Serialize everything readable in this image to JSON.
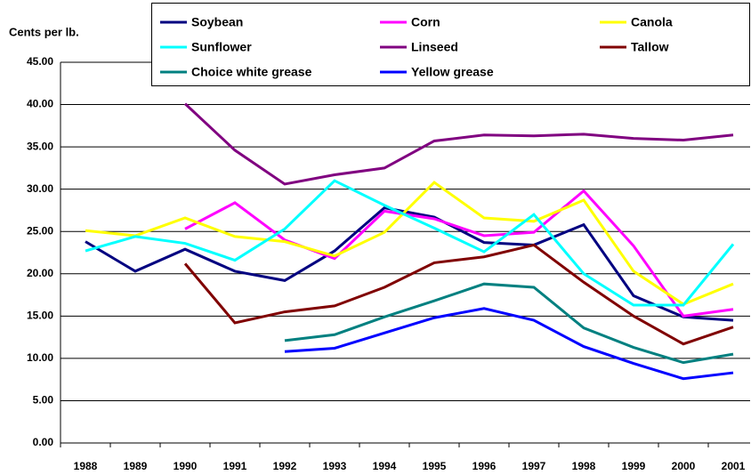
{
  "chart_data": {
    "type": "line",
    "y_label": "Cents per lb.",
    "categories": [
      "1988",
      "1989",
      "1990",
      "1991",
      "1992",
      "1993",
      "1994",
      "1995",
      "1996",
      "1997",
      "1998",
      "1999",
      "2000",
      "2001"
    ],
    "series": [
      {
        "name": "Soybean",
        "color": "#000080",
        "values": [
          23.8,
          20.3,
          22.9,
          20.3,
          19.2,
          22.7,
          27.8,
          26.7,
          23.7,
          23.4,
          25.8,
          17.4,
          14.9,
          14.5
        ]
      },
      {
        "name": "Corn",
        "color": "#ff00ff",
        "values": [
          null,
          null,
          25.3,
          28.4,
          24.0,
          21.8,
          27.4,
          26.5,
          24.5,
          24.9,
          29.8,
          23.3,
          15.0,
          15.8
        ]
      },
      {
        "name": "Canola",
        "color": "#ffff00",
        "values": [
          25.1,
          24.5,
          26.6,
          24.4,
          23.8,
          22.1,
          24.9,
          30.8,
          26.6,
          26.2,
          28.7,
          20.3,
          16.4,
          18.8
        ]
      },
      {
        "name": "Sunflower",
        "color": "#00ffff",
        "values": [
          22.7,
          24.4,
          23.6,
          21.6,
          25.3,
          31.0,
          28.1,
          25.4,
          22.6,
          27.0,
          20.0,
          16.3,
          16.3,
          23.5
        ]
      },
      {
        "name": "Linseed",
        "color": "#800080",
        "values": [
          null,
          null,
          40.1,
          34.6,
          30.6,
          31.7,
          32.5,
          35.7,
          36.4,
          36.3,
          36.5,
          36.0,
          35.8,
          36.4
        ]
      },
      {
        "name": "Tallow",
        "color": "#800000",
        "values": [
          null,
          null,
          21.2,
          14.2,
          15.5,
          16.2,
          18.4,
          21.3,
          22.0,
          23.4,
          19.0,
          15.0,
          11.7,
          13.7
        ]
      },
      {
        "name": "Choice white grease",
        "color": "#008080",
        "values": [
          null,
          null,
          null,
          null,
          12.1,
          12.8,
          14.9,
          16.8,
          18.8,
          18.4,
          13.6,
          11.3,
          9.5,
          10.5
        ]
      },
      {
        "name": "Yellow grease",
        "color": "#0000ff",
        "values": [
          null,
          null,
          null,
          null,
          10.8,
          11.2,
          13.0,
          14.8,
          15.9,
          14.5,
          11.4,
          9.4,
          7.6,
          8.3
        ]
      }
    ],
    "ylim": [
      0,
      45
    ],
    "yticks": [
      {
        "value": 0,
        "label": "0.00"
      },
      {
        "value": 5,
        "label": "5.00"
      },
      {
        "value": 10,
        "label": "10.00"
      },
      {
        "value": 15,
        "label": "15.00"
      },
      {
        "value": 20,
        "label": "20.00"
      },
      {
        "value": 25,
        "label": "25.00"
      },
      {
        "value": 30,
        "label": "30.00"
      },
      {
        "value": 35,
        "label": "35.00"
      },
      {
        "value": 40,
        "label": "40.00"
      },
      {
        "value": 45,
        "label": "45.00"
      }
    ],
    "grid": true,
    "legend": "top"
  }
}
